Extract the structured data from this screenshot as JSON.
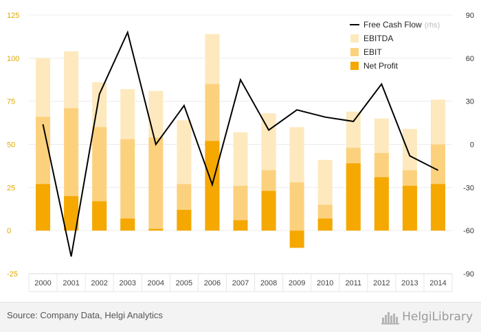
{
  "chart_data": {
    "type": "bar",
    "categories": [
      "2000",
      "2001",
      "2002",
      "2003",
      "2004",
      "2005",
      "2006",
      "2007",
      "2008",
      "2009",
      "2010",
      "2011",
      "2012",
      "2013",
      "2014"
    ],
    "series": [
      {
        "name": "EBITDA",
        "values": [
          100,
          104,
          86,
          82,
          81,
          64,
          114,
          57,
          68,
          60,
          41,
          69,
          65,
          59,
          76
        ],
        "color": "#fde9bd"
      },
      {
        "name": "EBIT",
        "values": [
          66,
          71,
          60,
          53,
          54,
          27,
          85,
          26,
          35,
          28,
          15,
          48,
          45,
          35,
          50
        ],
        "color": "#fcd17e"
      },
      {
        "name": "Net Profit",
        "values": [
          27,
          20,
          17,
          7,
          1,
          12,
          52,
          6,
          23,
          -10,
          7,
          39,
          31,
          26,
          27
        ],
        "color": "#f5a800"
      }
    ],
    "line_series": {
      "name": "Free Cash Flow",
      "note": "(rhs)",
      "values": [
        14,
        -78,
        35,
        78,
        0,
        27,
        -28,
        45,
        10,
        24,
        19,
        16,
        42,
        -8,
        -18
      ],
      "color": "#000000"
    },
    "ylim_left": [
      -25,
      125
    ],
    "yticks_left": [
      "125",
      "100",
      "75",
      "50",
      "25",
      "0",
      "-25"
    ],
    "ylim_right": [
      -90,
      90
    ],
    "yticks_right": [
      "90",
      "60",
      "30",
      "0",
      "-30",
      "-60",
      "-90"
    ],
    "legend_position": "top-right",
    "grid": "horizontal"
  },
  "footer": {
    "source": "Source: Company Data, Helgi Analytics",
    "logo_text": "HelgiLibrary"
  }
}
